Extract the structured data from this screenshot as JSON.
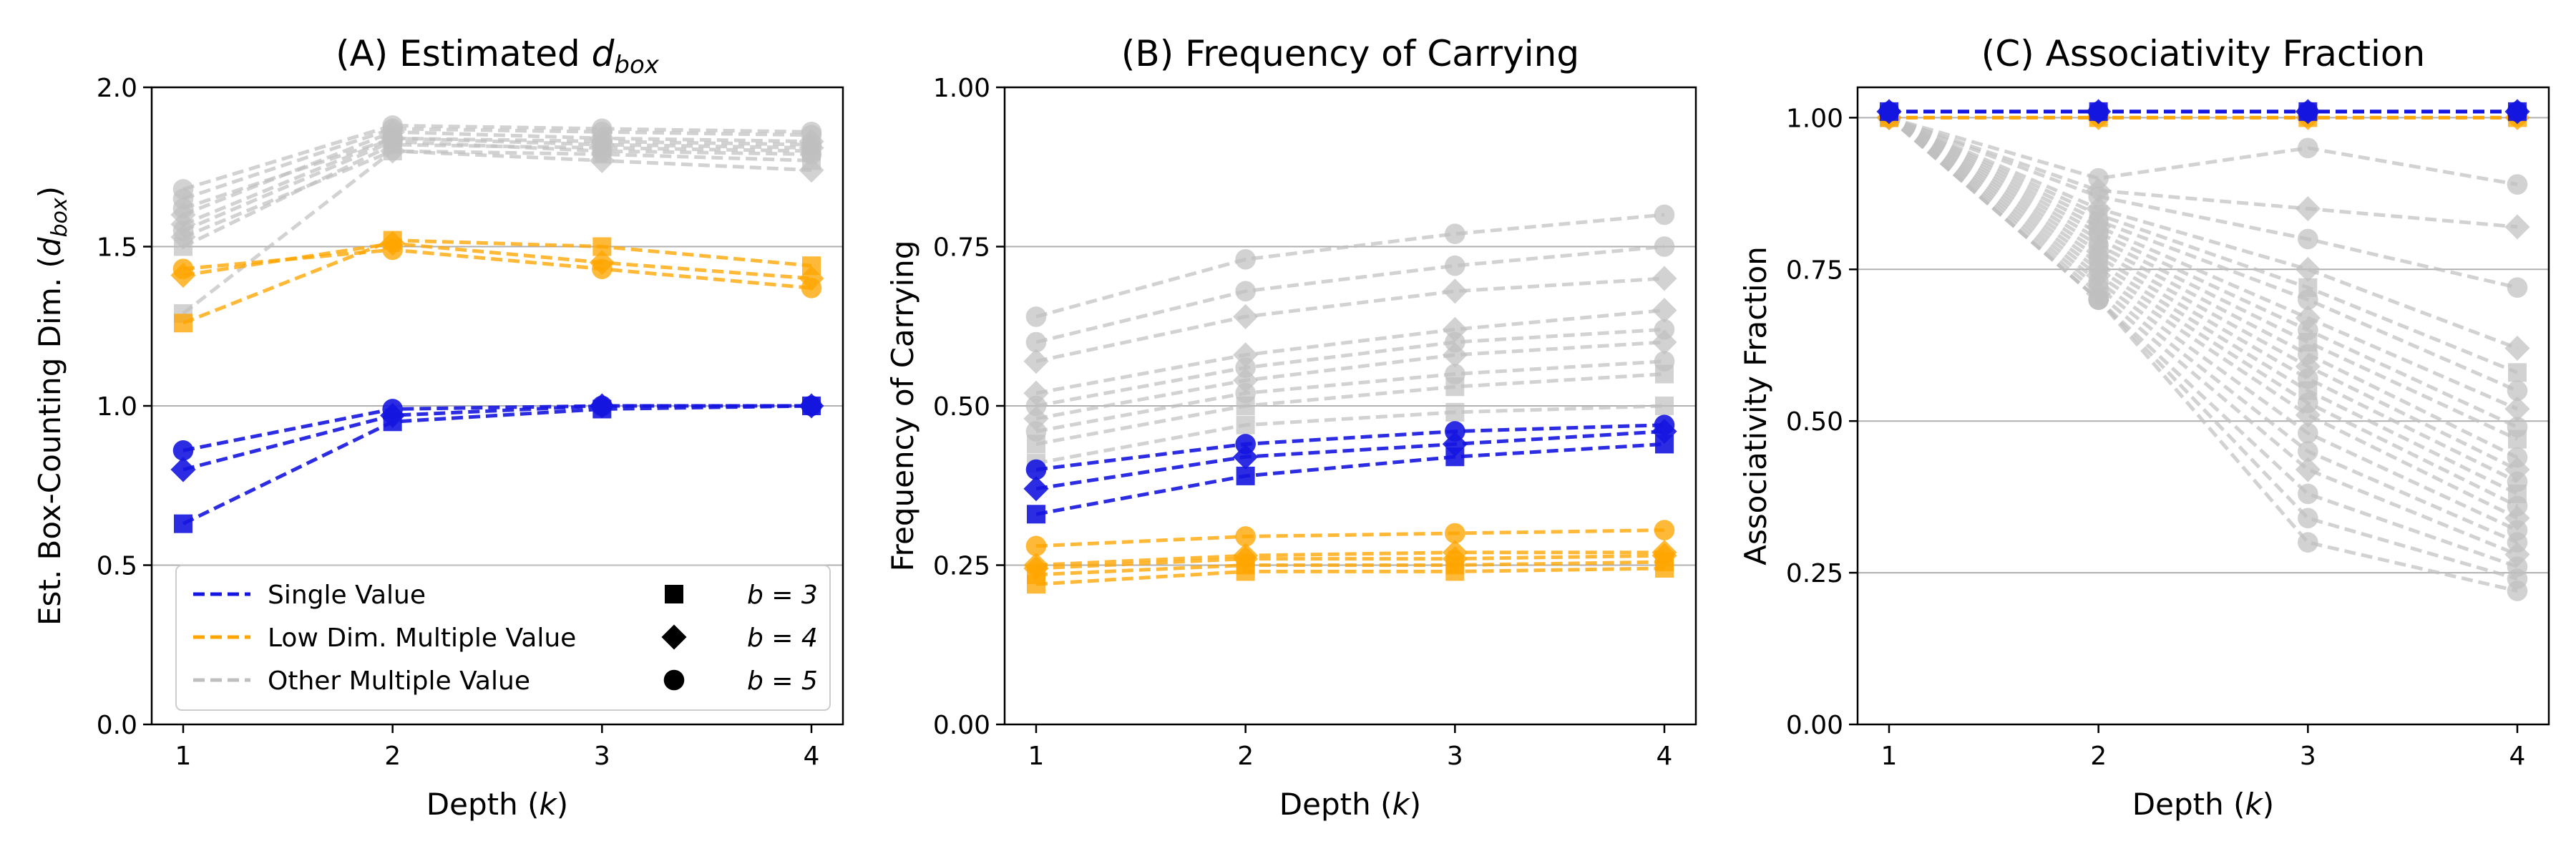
{
  "figure": {
    "legend_entries": [
      "Single Value",
      "Low Dim. Multiple Value",
      "Other Multiple Value"
    ],
    "marker_legend": [
      {
        "label": "b = 3",
        "marker": "square-marker-icon"
      },
      {
        "label": "b = 4",
        "marker": "diamond-marker-icon"
      },
      {
        "label": "b = 5",
        "marker": "circle-marker-icon"
      }
    ],
    "colors": {
      "single": "#1515e0",
      "low": "#ffa500",
      "other": "#bfbfbf",
      "grid": "#b0b0b0"
    }
  },
  "chart_data": [
    {
      "id": "A",
      "type": "line",
      "title_prefix": "(A) Estimated ",
      "title_var": "d",
      "title_sub": "box",
      "xlabel_prefix": "Depth (",
      "xlabel_var": "k",
      "xlabel_suffix": ")",
      "ylabel_prefix": "Est. Box-Counting Dim. (",
      "ylabel_var": "d",
      "ylabel_sub": "box",
      "ylabel_suffix": ")",
      "x": [
        1,
        2,
        3,
        4
      ],
      "xticks": [
        "1",
        "2",
        "3",
        "4"
      ],
      "ylim": [
        0,
        2.0
      ],
      "yticks": [
        "0.0",
        "0.5",
        "1.0",
        "1.5",
        "2.0"
      ],
      "ytick_values": [
        0,
        0.5,
        1.0,
        1.5,
        2.0
      ],
      "grid": "y",
      "legend": "lower-left",
      "series": [
        {
          "group": "single",
          "b": 3,
          "values": [
            0.63,
            0.95,
            0.99,
            1.0
          ]
        },
        {
          "group": "single",
          "b": 4,
          "values": [
            0.8,
            0.97,
            1.0,
            1.0
          ]
        },
        {
          "group": "single",
          "b": 5,
          "values": [
            0.86,
            0.99,
            1.0,
            1.0
          ]
        },
        {
          "group": "low",
          "b": 3,
          "values": [
            1.26,
            1.52,
            1.5,
            1.44
          ]
        },
        {
          "group": "low",
          "b": 4,
          "values": [
            1.41,
            1.51,
            1.45,
            1.4
          ]
        },
        {
          "group": "low",
          "b": 5,
          "values": [
            1.43,
            1.49,
            1.43,
            1.37
          ]
        },
        {
          "group": "other",
          "b": 3,
          "values": [
            1.29,
            1.8,
            1.79,
            1.77
          ]
        },
        {
          "group": "other",
          "b": 3,
          "values": [
            1.5,
            1.82,
            1.81,
            1.8
          ]
        },
        {
          "group": "other",
          "b": 4,
          "values": [
            1.53,
            1.8,
            1.77,
            1.74
          ]
        },
        {
          "group": "other",
          "b": 4,
          "values": [
            1.57,
            1.84,
            1.82,
            1.81
          ]
        },
        {
          "group": "other",
          "b": 4,
          "values": [
            1.6,
            1.86,
            1.84,
            1.83
          ]
        },
        {
          "group": "other",
          "b": 5,
          "values": [
            1.62,
            1.84,
            1.83,
            1.82
          ]
        },
        {
          "group": "other",
          "b": 5,
          "values": [
            1.65,
            1.87,
            1.86,
            1.85
          ]
        },
        {
          "group": "other",
          "b": 5,
          "values": [
            1.68,
            1.88,
            1.87,
            1.86
          ]
        },
        {
          "group": "other",
          "b": 5,
          "values": [
            1.55,
            1.83,
            1.8,
            1.79
          ]
        }
      ]
    },
    {
      "id": "B",
      "type": "line",
      "title_prefix": "(B) Frequency of Carrying",
      "xlabel_prefix": "Depth (",
      "xlabel_var": "k",
      "xlabel_suffix": ")",
      "ylabel_prefix": "Frequency of Carrying",
      "x": [
        1,
        2,
        3,
        4
      ],
      "xticks": [
        "1",
        "2",
        "3",
        "4"
      ],
      "ylim": [
        0,
        1.0
      ],
      "yticks": [
        "0.00",
        "0.25",
        "0.50",
        "0.75",
        "1.00"
      ],
      "ytick_values": [
        0,
        0.25,
        0.5,
        0.75,
        1.0
      ],
      "grid": "y",
      "series": [
        {
          "group": "single",
          "b": 3,
          "values": [
            0.33,
            0.39,
            0.42,
            0.44
          ]
        },
        {
          "group": "single",
          "b": 4,
          "values": [
            0.37,
            0.42,
            0.44,
            0.46
          ]
        },
        {
          "group": "single",
          "b": 5,
          "values": [
            0.4,
            0.44,
            0.46,
            0.47
          ]
        },
        {
          "group": "low",
          "b": 3,
          "values": [
            0.22,
            0.24,
            0.24,
            0.245
          ]
        },
        {
          "group": "low",
          "b": 3,
          "values": [
            0.235,
            0.25,
            0.25,
            0.255
          ]
        },
        {
          "group": "low",
          "b": 4,
          "values": [
            0.245,
            0.26,
            0.26,
            0.265
          ]
        },
        {
          "group": "low",
          "b": 4,
          "values": [
            0.25,
            0.265,
            0.27,
            0.27
          ]
        },
        {
          "group": "low",
          "b": 5,
          "values": [
            0.28,
            0.295,
            0.3,
            0.305
          ]
        },
        {
          "group": "other",
          "b": 3,
          "values": [
            0.41,
            0.47,
            0.49,
            0.5
          ]
        },
        {
          "group": "other",
          "b": 3,
          "values": [
            0.44,
            0.5,
            0.53,
            0.55
          ]
        },
        {
          "group": "other",
          "b": 4,
          "values": [
            0.48,
            0.54,
            0.58,
            0.6
          ]
        },
        {
          "group": "other",
          "b": 4,
          "values": [
            0.52,
            0.58,
            0.62,
            0.65
          ]
        },
        {
          "group": "other",
          "b": 4,
          "values": [
            0.57,
            0.64,
            0.68,
            0.7
          ]
        },
        {
          "group": "other",
          "b": 5,
          "values": [
            0.6,
            0.68,
            0.72,
            0.75
          ]
        },
        {
          "group": "other",
          "b": 5,
          "values": [
            0.64,
            0.73,
            0.77,
            0.8
          ]
        },
        {
          "group": "other",
          "b": 5,
          "values": [
            0.5,
            0.56,
            0.6,
            0.62
          ]
        },
        {
          "group": "other",
          "b": 5,
          "values": [
            0.46,
            0.52,
            0.55,
            0.57
          ]
        }
      ]
    },
    {
      "id": "C",
      "type": "line",
      "title_prefix": "(C) Associativity Fraction",
      "xlabel_prefix": "Depth (",
      "xlabel_var": "k",
      "xlabel_suffix": ")",
      "ylabel_prefix": "Associativity Fraction",
      "x": [
        1,
        2,
        3,
        4
      ],
      "xticks": [
        "1",
        "2",
        "3",
        "4"
      ],
      "ylim": [
        0,
        1.05
      ],
      "yticks": [
        "0.00",
        "0.25",
        "0.50",
        "0.75",
        "1.00"
      ],
      "ytick_values": [
        0,
        0.25,
        0.5,
        0.75,
        1.0
      ],
      "grid": "y",
      "series": [
        {
          "group": "other",
          "b": 5,
          "values": [
            1.0,
            0.9,
            0.95,
            0.89
          ]
        },
        {
          "group": "other",
          "b": 4,
          "values": [
            1.0,
            0.88,
            0.85,
            0.82
          ]
        },
        {
          "group": "other",
          "b": 5,
          "values": [
            1.0,
            0.87,
            0.8,
            0.72
          ]
        },
        {
          "group": "other",
          "b": 4,
          "values": [
            1.0,
            0.85,
            0.75,
            0.62
          ]
        },
        {
          "group": "other",
          "b": 3,
          "values": [
            1.0,
            0.84,
            0.72,
            0.58
          ]
        },
        {
          "group": "other",
          "b": 5,
          "values": [
            1.0,
            0.83,
            0.7,
            0.55
          ]
        },
        {
          "group": "other",
          "b": 4,
          "values": [
            1.0,
            0.82,
            0.67,
            0.52
          ]
        },
        {
          "group": "other",
          "b": 5,
          "values": [
            1.0,
            0.81,
            0.65,
            0.49
          ]
        },
        {
          "group": "other",
          "b": 3,
          "values": [
            1.0,
            0.8,
            0.63,
            0.47
          ]
        },
        {
          "group": "other",
          "b": 5,
          "values": [
            1.0,
            0.79,
            0.61,
            0.44
          ]
        },
        {
          "group": "other",
          "b": 4,
          "values": [
            1.0,
            0.78,
            0.59,
            0.42
          ]
        },
        {
          "group": "other",
          "b": 5,
          "values": [
            1.0,
            0.77,
            0.57,
            0.4
          ]
        },
        {
          "group": "other",
          "b": 3,
          "values": [
            1.0,
            0.76,
            0.55,
            0.38
          ]
        },
        {
          "group": "other",
          "b": 5,
          "values": [
            1.0,
            0.75,
            0.53,
            0.36
          ]
        },
        {
          "group": "other",
          "b": 4,
          "values": [
            1.0,
            0.74,
            0.51,
            0.34
          ]
        },
        {
          "group": "other",
          "b": 5,
          "values": [
            1.0,
            0.73,
            0.48,
            0.32
          ]
        },
        {
          "group": "other",
          "b": 5,
          "values": [
            1.0,
            0.72,
            0.45,
            0.3
          ]
        },
        {
          "group": "other",
          "b": 4,
          "values": [
            1.0,
            0.71,
            0.42,
            0.28
          ]
        },
        {
          "group": "other",
          "b": 5,
          "values": [
            1.0,
            0.7,
            0.38,
            0.26
          ]
        },
        {
          "group": "other",
          "b": 5,
          "values": [
            1.0,
            0.7,
            0.34,
            0.24
          ]
        },
        {
          "group": "other",
          "b": 5,
          "values": [
            1.0,
            0.7,
            0.3,
            0.22
          ]
        },
        {
          "group": "low",
          "b": 3,
          "values": [
            1.0,
            1.0,
            1.0,
            1.0
          ]
        },
        {
          "group": "low",
          "b": 4,
          "values": [
            1.0,
            1.0,
            1.0,
            1.0
          ]
        },
        {
          "group": "single",
          "b": 3,
          "values": [
            1.01,
            1.01,
            1.01,
            1.01
          ]
        },
        {
          "group": "single",
          "b": 4,
          "values": [
            1.01,
            1.01,
            1.01,
            1.01
          ]
        },
        {
          "group": "single",
          "b": 5,
          "values": [
            1.01,
            1.01,
            1.01,
            1.01
          ]
        }
      ]
    }
  ]
}
